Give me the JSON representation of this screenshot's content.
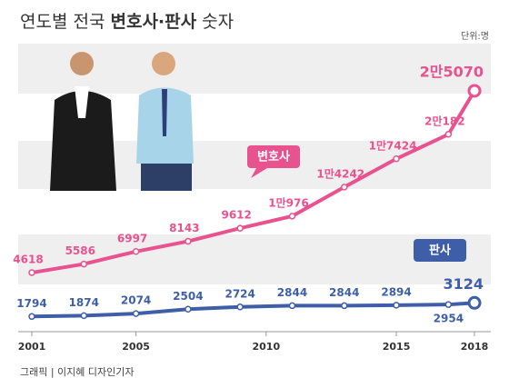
{
  "chart_data": {
    "type": "line",
    "title": [
      "연도별 전국 ",
      "변호사·판사",
      " 숫자"
    ],
    "unit": "단위:명",
    "source": "그래픽 | 이지혜 디자인기자",
    "x": [
      2001,
      2003,
      2005,
      2007,
      2009,
      2011,
      2013,
      2015,
      2017,
      2018
    ],
    "xlim": [
      2001,
      2018
    ],
    "xticks": [
      2001,
      2005,
      2010,
      2015,
      2018
    ],
    "ylim": [
      -1000,
      26600
    ],
    "y2lim": [
      1200,
      25100
    ],
    "series": [
      {
        "name": "변호사",
        "color": "#e8528f",
        "values": [
          4618,
          5586,
          6997,
          8143,
          9612,
          10976,
          14242,
          17424,
          20182,
          25070
        ],
        "value_labels": [
          "4618",
          "5586",
          "6997",
          "8143",
          "9612",
          "1만976",
          "1만4242",
          "1만7424",
          "2만182",
          "2만5070"
        ]
      },
      {
        "name": "판사",
        "color": "#3f5ea8",
        "axis": "y2",
        "values": [
          1794,
          1874,
          2074,
          2504,
          2724,
          2844,
          2844,
          2894,
          2954,
          3124
        ],
        "value_labels": [
          "1794",
          "1874",
          "2074",
          "2504",
          "2724",
          "2844",
          "2844",
          "2894",
          "2954",
          "3124"
        ]
      }
    ]
  }
}
